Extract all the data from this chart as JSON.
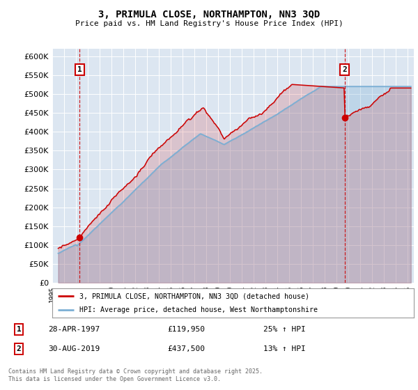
{
  "title": "3, PRIMULA CLOSE, NORTHAMPTON, NN3 3QD",
  "subtitle": "Price paid vs. HM Land Registry's House Price Index (HPI)",
  "background_color": "#dce6f1",
  "ylim": [
    0,
    620000
  ],
  "yticks": [
    0,
    50000,
    100000,
    150000,
    200000,
    250000,
    300000,
    350000,
    400000,
    450000,
    500000,
    550000,
    600000
  ],
  "xlim_start": 1995.3,
  "xlim_end": 2025.5,
  "sale1_x": 1997.32,
  "sale1_y": 119950,
  "sale2_x": 2019.66,
  "sale2_y": 437500,
  "line1_color": "#cc0000",
  "line2_color": "#7bafd4",
  "vline_color": "#cc0000",
  "legend1_label": "3, PRIMULA CLOSE, NORTHAMPTON, NN3 3QD (detached house)",
  "legend2_label": "HPI: Average price, detached house, West Northamptonshire",
  "sale1_date": "28-APR-1997",
  "sale1_price": "£119,950",
  "sale1_hpi": "25% ↑ HPI",
  "sale2_date": "30-AUG-2019",
  "sale2_price": "£437,500",
  "sale2_hpi": "13% ↑ HPI",
  "footer": "Contains HM Land Registry data © Crown copyright and database right 2025.\nThis data is licensed under the Open Government Licence v3.0."
}
